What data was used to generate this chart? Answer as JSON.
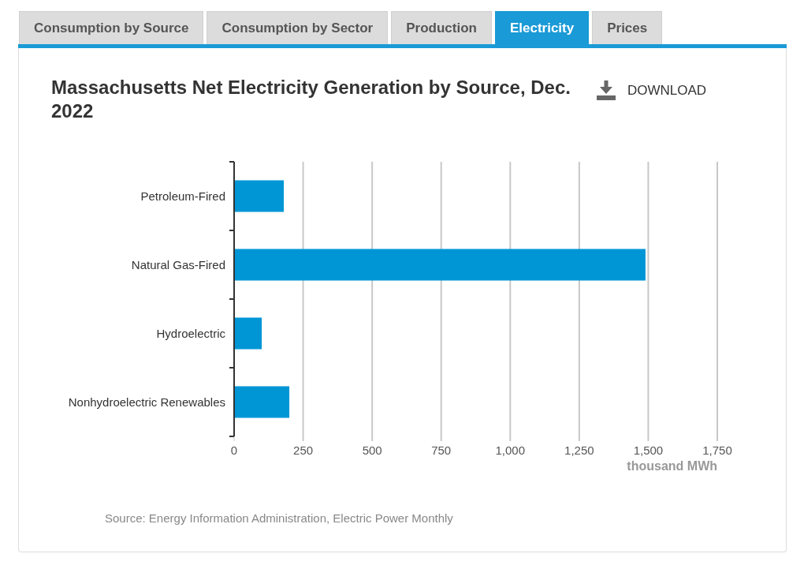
{
  "chart_data": {
    "type": "bar",
    "orientation": "horizontal",
    "title": "Massachusetts Net Electricity Generation by Source, Dec. 2022",
    "categories": [
      "Petroleum-Fired",
      "Natural Gas-Fired",
      "Hydroelectric",
      "Nonhydroelectric Renewables"
    ],
    "values": [
      180,
      1490,
      100,
      200
    ],
    "color": "#0096d6",
    "xlabel": "thousand MWh",
    "xlim": [
      0,
      1750
    ],
    "xticks": [
      0,
      250,
      500,
      750,
      {
        "value": 1000,
        "label": "1,000"
      },
      {
        "value": 1250,
        "label": "1,250"
      },
      {
        "value": 1500,
        "label": "1,500"
      },
      {
        "value": 1750,
        "label": "1,750"
      }
    ],
    "grid": "x",
    "annotations": [
      "Consumption by Source",
      "Consumption by Sector",
      "Production",
      "Electricity",
      "Prices",
      "DOWNLOAD",
      "Source: Energy Information Administration, Electric Power Monthly"
    ]
  }
}
